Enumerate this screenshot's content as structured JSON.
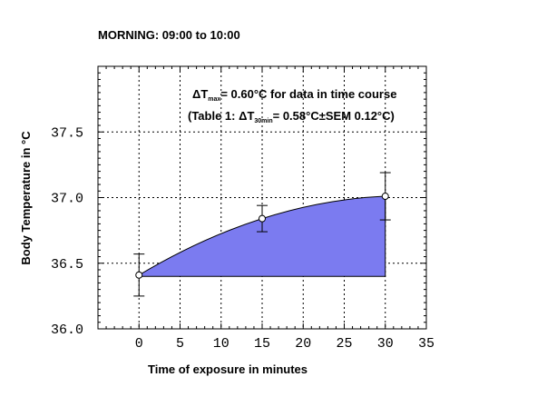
{
  "chart_data": {
    "type": "line",
    "title": "MORNING: 09:00 to 10:00",
    "xlabel": "Time of exposure in minutes",
    "ylabel": "Body Temperature in °C",
    "xlim": [
      -5,
      35
    ],
    "ylim": [
      36.0,
      38.0
    ],
    "x_ticks": [
      0,
      5,
      10,
      15,
      20,
      25,
      30,
      35
    ],
    "x_tick_labels": [
      "0",
      "5",
      "10",
      "15",
      "20",
      "25",
      "30",
      "35"
    ],
    "y_ticks": [
      36.0,
      36.5,
      37.0,
      37.5
    ],
    "y_tick_labels": [
      "36.0",
      "36.5",
      "37.0",
      "37.5"
    ],
    "grid": true,
    "fill_color": "#7b7bf0",
    "points": [
      {
        "x": 0,
        "y": 36.41,
        "err": 0.16
      },
      {
        "x": 15,
        "y": 36.84,
        "err": 0.1
      },
      {
        "x": 30,
        "y": 37.01,
        "err": 0.18
      }
    ],
    "fill_baseline": 36.4,
    "annotations": {
      "line1": {
        "pre": "ΔT",
        "sub": "max",
        "post": "= 0.60°C for data in time course"
      },
      "line2": {
        "pre": "(Table 1: ΔT",
        "sub": "30min",
        "post": "= 0.58°C±SEM 0.12°C)"
      }
    }
  }
}
